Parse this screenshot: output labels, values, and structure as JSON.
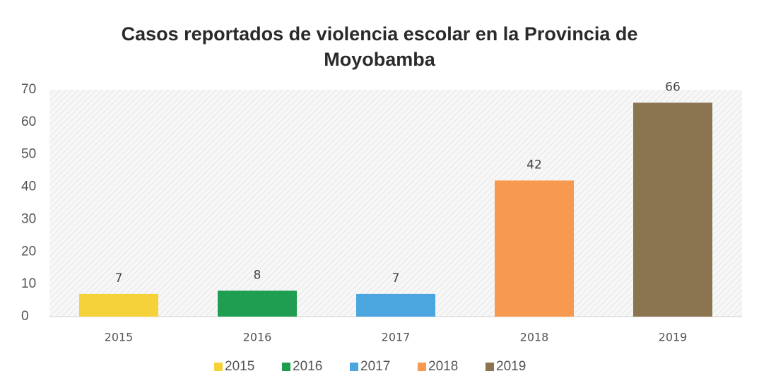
{
  "chart_data": {
    "type": "bar",
    "title": "Casos reportados de violencia escolar en la Provincia de Moyobamba",
    "categories": [
      "2015",
      "2016",
      "2017",
      "2018",
      "2019"
    ],
    "values": [
      7,
      8,
      7,
      42,
      66
    ],
    "colors": [
      "#f5d23a",
      "#1f9e52",
      "#4ba6e0",
      "#f7994e",
      "#8b7450"
    ],
    "ylim": [
      0,
      70
    ],
    "yticks": [
      0,
      10,
      20,
      30,
      40,
      50,
      60,
      70
    ],
    "grid": false,
    "legend": "bottom"
  }
}
